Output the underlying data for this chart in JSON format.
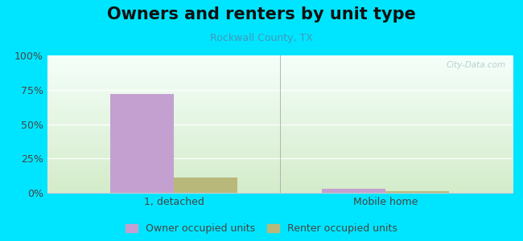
{
  "title": "Owners and renters by unit type",
  "subtitle": "Rockwall County, TX",
  "categories": [
    "1, detached",
    "Mobile home"
  ],
  "owner_values": [
    72,
    3
  ],
  "renter_values": [
    11,
    1
  ],
  "owner_color": "#c4a0d0",
  "renter_color": "#b8b87a",
  "background_outer": "#00e5ff",
  "background_inner_top": "#f5fffa",
  "background_inner_bottom": "#d4ecca",
  "yticks": [
    0,
    25,
    50,
    75,
    100
  ],
  "ytick_labels": [
    "0%",
    "25%",
    "50%",
    "75%",
    "100%"
  ],
  "bar_width": 0.3,
  "legend_owner": "Owner occupied units",
  "legend_renter": "Renter occupied units",
  "title_fontsize": 15,
  "subtitle_fontsize": 9,
  "axis_fontsize": 9,
  "xlim": [
    -0.6,
    1.6
  ]
}
